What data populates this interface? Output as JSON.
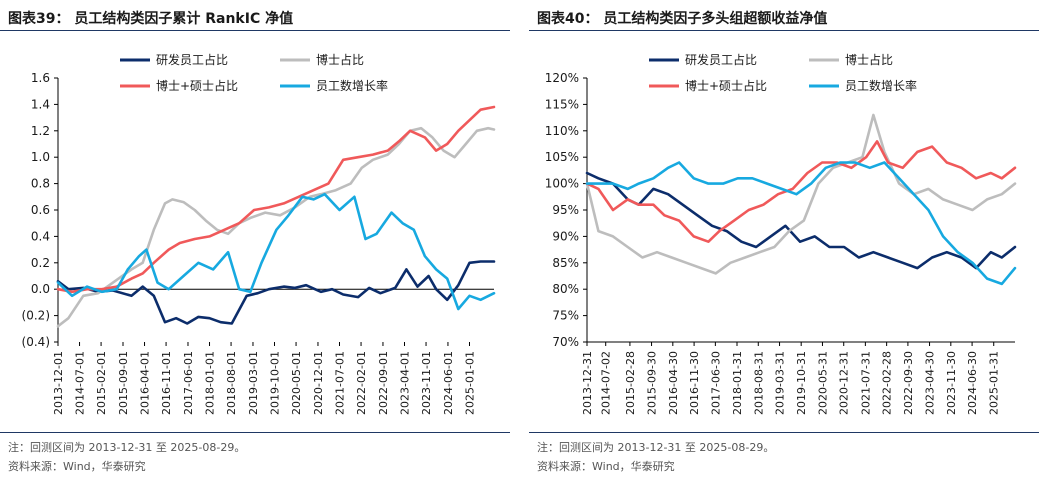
{
  "colors": {
    "navy": "#0c2d6b",
    "gray": "#bdbdbd",
    "red": "#f0595a",
    "blue": "#17a9e0",
    "title_rule": "#1f3864"
  },
  "left": {
    "title": "图表39：   员工结构类因子累计 RankIC 净值",
    "note": "注：回测区间为 2013-12-31 至 2025-08-29。",
    "source": "资料来源：Wind，华泰研究"
  },
  "right": {
    "title": "图表40：   员工结构类因子多头组超额收益净值",
    "note": "注：回测区间为 2013-12-31 至 2025-08-29。",
    "source": "资料来源：Wind，华泰研究"
  },
  "chart_data": [
    {
      "type": "line",
      "title": "员工结构类因子累计 RankIC 净值",
      "ylim": [
        -0.4,
        1.6
      ],
      "yticks": [
        -0.4,
        -0.2,
        0.0,
        0.2,
        0.4,
        0.6,
        0.8,
        1.0,
        1.2,
        1.4,
        1.6
      ],
      "ytick_labels": [
        "(0.4)",
        "(0.2)",
        "0.0",
        "0.2",
        "0.4",
        "0.6",
        "0.8",
        "1.0",
        "1.2",
        "1.4",
        "1.6"
      ],
      "xrange": [
        2013.92,
        2025.66
      ],
      "x_ticks": [
        2013.92,
        2014.5,
        2015.08,
        2015.67,
        2016.25,
        2016.83,
        2017.42,
        2018.0,
        2018.58,
        2019.17,
        2019.75,
        2020.33,
        2020.92,
        2021.5,
        2022.08,
        2022.67,
        2023.25,
        2023.83,
        2024.42,
        2025.0
      ],
      "x_tick_labels": [
        "2013-12-01",
        "2014-07-01",
        "2015-02-01",
        "2015-09-01",
        "2016-04-01",
        "2016-11-01",
        "2017-06-01",
        "2018-01-01",
        "2018-08-01",
        "2019-03-01",
        "2019-10-01",
        "2020-05-01",
        "2020-12-01",
        "2021-07-01",
        "2022-02-01",
        "2022-09-01",
        "2023-04-01",
        "2023-11-01",
        "2024-06-01",
        "2025-01-01"
      ],
      "series": [
        {
          "name": "研发员工占比",
          "color": "navy",
          "x": [
            2013.92,
            2014.2,
            2014.6,
            2015.0,
            2015.4,
            2015.9,
            2016.2,
            2016.5,
            2016.8,
            2017.1,
            2017.4,
            2017.7,
            2018.0,
            2018.3,
            2018.6,
            2019.0,
            2019.3,
            2019.6,
            2020.0,
            2020.3,
            2020.6,
            2021.0,
            2021.3,
            2021.6,
            2022.0,
            2022.3,
            2022.6,
            2023.0,
            2023.3,
            2023.6,
            2023.9,
            2024.1,
            2024.4,
            2024.7,
            2025.0,
            2025.3,
            2025.66
          ],
          "values": [
            0.06,
            0.0,
            0.01,
            -0.02,
            -0.01,
            -0.05,
            0.02,
            -0.05,
            -0.25,
            -0.22,
            -0.26,
            -0.21,
            -0.22,
            -0.25,
            -0.26,
            -0.05,
            -0.03,
            0.0,
            0.02,
            0.01,
            0.03,
            -0.02,
            0.0,
            -0.04,
            -0.06,
            0.01,
            -0.03,
            0.01,
            0.15,
            0.02,
            0.1,
            0.0,
            -0.08,
            0.03,
            0.2,
            0.21,
            0.21
          ]
        },
        {
          "name": "博士占比",
          "color": "gray",
          "x": [
            2013.92,
            2014.2,
            2014.6,
            2015.0,
            2015.4,
            2015.9,
            2016.2,
            2016.5,
            2016.8,
            2017.0,
            2017.3,
            2017.6,
            2017.9,
            2018.2,
            2018.5,
            2018.8,
            2019.1,
            2019.5,
            2019.9,
            2020.3,
            2020.7,
            2021.0,
            2021.4,
            2021.8,
            2022.1,
            2022.4,
            2022.8,
            2023.1,
            2023.4,
            2023.7,
            2024.0,
            2024.3,
            2024.6,
            2024.9,
            2025.2,
            2025.5,
            2025.66
          ],
          "values": [
            -0.28,
            -0.22,
            -0.05,
            -0.03,
            0.05,
            0.15,
            0.2,
            0.45,
            0.65,
            0.68,
            0.66,
            0.6,
            0.52,
            0.45,
            0.42,
            0.5,
            0.54,
            0.58,
            0.56,
            0.62,
            0.7,
            0.72,
            0.75,
            0.8,
            0.92,
            0.98,
            1.02,
            1.1,
            1.2,
            1.22,
            1.15,
            1.05,
            1.0,
            1.1,
            1.2,
            1.22,
            1.21
          ]
        },
        {
          "name": "博士+硕士占比",
          "color": "red",
          "x": [
            2013.92,
            2014.3,
            2014.7,
            2015.1,
            2015.5,
            2015.9,
            2016.2,
            2016.5,
            2016.9,
            2017.2,
            2017.6,
            2018.0,
            2018.4,
            2018.8,
            2019.2,
            2019.6,
            2020.0,
            2020.4,
            2020.8,
            2021.2,
            2021.6,
            2022.0,
            2022.4,
            2022.8,
            2023.1,
            2023.4,
            2023.8,
            2024.1,
            2024.4,
            2024.7,
            2025.0,
            2025.3,
            2025.66
          ],
          "values": [
            0.0,
            -0.02,
            0.0,
            0.0,
            0.02,
            0.08,
            0.12,
            0.2,
            0.3,
            0.35,
            0.38,
            0.4,
            0.45,
            0.5,
            0.6,
            0.62,
            0.65,
            0.7,
            0.75,
            0.8,
            0.98,
            1.0,
            1.02,
            1.05,
            1.12,
            1.2,
            1.15,
            1.05,
            1.1,
            1.2,
            1.28,
            1.36,
            1.38
          ]
        },
        {
          "name": "员工数增长率",
          "color": "blue",
          "x": [
            2013.92,
            2014.3,
            2014.7,
            2015.1,
            2015.5,
            2015.8,
            2016.1,
            2016.3,
            2016.6,
            2016.9,
            2017.3,
            2017.7,
            2018.1,
            2018.5,
            2018.8,
            2019.1,
            2019.4,
            2019.8,
            2020.1,
            2020.5,
            2020.8,
            2021.1,
            2021.5,
            2021.9,
            2022.2,
            2022.5,
            2022.9,
            2023.2,
            2023.5,
            2023.8,
            2024.1,
            2024.4,
            2024.7,
            2025.0,
            2025.3,
            2025.66
          ],
          "values": [
            0.05,
            -0.05,
            0.02,
            -0.02,
            0.0,
            0.15,
            0.25,
            0.3,
            0.05,
            0.0,
            0.1,
            0.2,
            0.15,
            0.28,
            0.0,
            -0.02,
            0.2,
            0.45,
            0.55,
            0.7,
            0.68,
            0.72,
            0.6,
            0.7,
            0.38,
            0.42,
            0.58,
            0.5,
            0.45,
            0.25,
            0.15,
            0.08,
            -0.15,
            -0.05,
            -0.08,
            -0.03
          ]
        }
      ]
    },
    {
      "type": "line",
      "title": "员工结构类因子多头组超额收益净值",
      "ylim": [
        70,
        120
      ],
      "yticks": [
        70,
        75,
        80,
        85,
        90,
        95,
        100,
        105,
        110,
        115,
        120
      ],
      "ytick_labels": [
        "70%",
        "75%",
        "80%",
        "85%",
        "90%",
        "95%",
        "100%",
        "105%",
        "110%",
        "115%",
        "120%"
      ],
      "xrange": [
        2013.99,
        2025.66
      ],
      "x_ticks": [
        2013.99,
        2014.5,
        2015.16,
        2015.75,
        2016.33,
        2016.91,
        2017.49,
        2018.08,
        2018.66,
        2019.24,
        2019.83,
        2020.41,
        2020.99,
        2021.58,
        2022.16,
        2022.74,
        2023.33,
        2023.91,
        2024.49,
        2025.08
      ],
      "x_tick_labels": [
        "2013-12-31",
        "2014-07-02",
        "2015-02-28",
        "2015-09-30",
        "2016-04-30",
        "2016-11-30",
        "2017-06-30",
        "2018-01-31",
        "2018-08-31",
        "2019-03-31",
        "2019-10-31",
        "2020-05-31",
        "2020-12-31",
        "2021-07-31",
        "2022-02-28",
        "2022-09-30",
        "2023-04-30",
        "2023-11-30",
        "2024-06-30",
        "2025-01-31"
      ],
      "series": [
        {
          "name": "研发员工占比",
          "color": "navy",
          "x": [
            2013.99,
            2014.3,
            2014.7,
            2015.1,
            2015.4,
            2015.8,
            2016.2,
            2016.6,
            2017.0,
            2017.4,
            2017.8,
            2018.2,
            2018.6,
            2019.0,
            2019.4,
            2019.8,
            2020.2,
            2020.6,
            2021.0,
            2021.4,
            2021.8,
            2022.2,
            2022.6,
            2023.0,
            2023.4,
            2023.8,
            2024.2,
            2024.6,
            2025.0,
            2025.3,
            2025.66
          ],
          "values": [
            102,
            101,
            100,
            97,
            96,
            99,
            98,
            96,
            94,
            92,
            91,
            89,
            88,
            90,
            92,
            89,
            90,
            88,
            88,
            86,
            87,
            86,
            85,
            84,
            86,
            87,
            86,
            84,
            87,
            86,
            88
          ]
        },
        {
          "name": "博士占比",
          "color": "gray",
          "x": [
            2013.99,
            2014.3,
            2014.7,
            2015.1,
            2015.5,
            2015.9,
            2016.3,
            2016.7,
            2017.1,
            2017.5,
            2017.9,
            2018.3,
            2018.7,
            2019.1,
            2019.5,
            2019.9,
            2020.3,
            2020.7,
            2021.1,
            2021.5,
            2021.8,
            2022.1,
            2022.5,
            2022.9,
            2023.3,
            2023.7,
            2024.1,
            2024.5,
            2024.9,
            2025.3,
            2025.66
          ],
          "values": [
            100,
            91,
            90,
            88,
            86,
            87,
            86,
            85,
            84,
            83,
            85,
            86,
            87,
            88,
            91,
            93,
            100,
            103,
            104,
            105,
            113,
            106,
            100,
            98,
            99,
            97,
            96,
            95,
            97,
            98,
            100
          ]
        },
        {
          "name": "博士+硕士占比",
          "color": "red",
          "x": [
            2013.99,
            2014.3,
            2014.7,
            2015.1,
            2015.4,
            2015.8,
            2016.1,
            2016.5,
            2016.9,
            2017.3,
            2017.6,
            2018.0,
            2018.4,
            2018.8,
            2019.2,
            2019.6,
            2020.0,
            2020.4,
            2020.8,
            2021.2,
            2021.6,
            2021.9,
            2022.2,
            2022.6,
            2023.0,
            2023.4,
            2023.8,
            2024.2,
            2024.6,
            2025.0,
            2025.3,
            2025.66
          ],
          "values": [
            100,
            99,
            95,
            97,
            96,
            96,
            94,
            93,
            90,
            89,
            91,
            93,
            95,
            96,
            98,
            99,
            102,
            104,
            104,
            103,
            105,
            108,
            104,
            103,
            106,
            107,
            104,
            103,
            101,
            102,
            101,
            103
          ]
        },
        {
          "name": "员工数增长率",
          "color": "blue",
          "x": [
            2013.99,
            2014.3,
            2014.7,
            2015.1,
            2015.4,
            2015.8,
            2016.2,
            2016.5,
            2016.9,
            2017.3,
            2017.7,
            2018.1,
            2018.5,
            2018.9,
            2019.3,
            2019.7,
            2020.1,
            2020.5,
            2020.9,
            2021.3,
            2021.7,
            2022.1,
            2022.5,
            2022.9,
            2023.3,
            2023.7,
            2024.1,
            2024.5,
            2024.9,
            2025.3,
            2025.66
          ],
          "values": [
            100,
            100,
            100,
            99,
            100,
            101,
            103,
            104,
            101,
            100,
            100,
            101,
            101,
            100,
            99,
            98,
            100,
            103,
            104,
            104,
            103,
            104,
            101,
            98,
            95,
            90,
            87,
            85,
            82,
            81,
            84
          ]
        }
      ]
    }
  ]
}
